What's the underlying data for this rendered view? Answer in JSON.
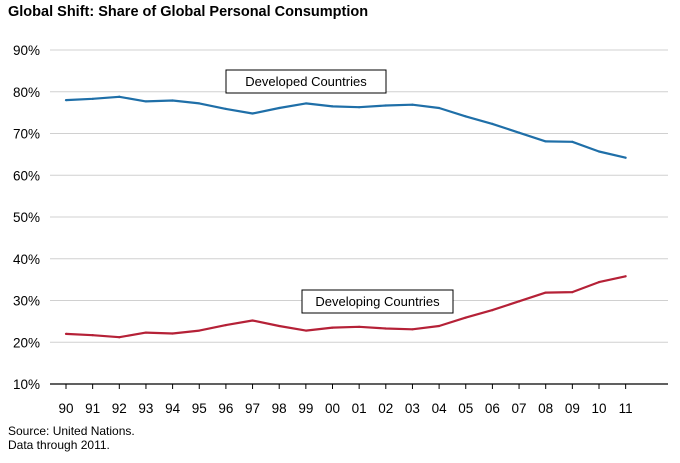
{
  "title": "Global Shift: Share of Global Personal Consumption",
  "source_lines": [
    "Source: United Nations.",
    "Data through 2011."
  ],
  "chart_data": {
    "type": "line",
    "title": "Global Shift: Share of Global Personal Consumption",
    "xlabel": "",
    "ylabel": "",
    "categories": [
      "90",
      "91",
      "92",
      "93",
      "94",
      "95",
      "96",
      "97",
      "98",
      "99",
      "00",
      "01",
      "02",
      "03",
      "04",
      "05",
      "06",
      "07",
      "08",
      "09",
      "10",
      "11"
    ],
    "ylim": [
      10,
      90
    ],
    "yticks": [
      10,
      20,
      30,
      40,
      50,
      60,
      70,
      80,
      90
    ],
    "ytick_labels": [
      "10%",
      "20%",
      "30%",
      "40%",
      "50%",
      "60%",
      "70%",
      "80%",
      "90%"
    ],
    "grid": true,
    "series": [
      {
        "name": "Developed Countries",
        "color": "#1f6fa8",
        "values": [
          78.0,
          78.3,
          78.8,
          77.7,
          77.9,
          77.2,
          75.9,
          74.8,
          76.1,
          77.2,
          76.5,
          76.3,
          76.7,
          76.9,
          76.1,
          74.1,
          72.3,
          70.2,
          68.1,
          68.0,
          65.7,
          64.2
        ]
      },
      {
        "name": "Developing Countries",
        "color": "#b52137",
        "values": [
          22.0,
          21.7,
          21.2,
          22.3,
          22.1,
          22.8,
          24.1,
          25.2,
          23.9,
          22.8,
          23.5,
          23.7,
          23.3,
          23.1,
          23.9,
          25.9,
          27.7,
          29.8,
          31.9,
          32.0,
          34.4,
          35.8
        ]
      }
    ],
    "annotations": [
      "Developed Countries",
      "Developing Countries"
    ]
  }
}
